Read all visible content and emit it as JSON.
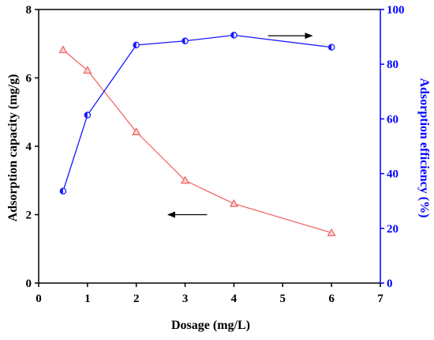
{
  "chart_data": {
    "type": "line",
    "xlabel": "Dosage (mg/L)",
    "ylabel_left": "Adsorption capacity (mg/g)",
    "ylabel_right": "Adsorption efficiency (%)",
    "xlim": [
      0,
      7
    ],
    "ylim_left": [
      0,
      8
    ],
    "ylim_right": [
      0,
      100
    ],
    "x_ticks": [
      0,
      1,
      2,
      3,
      4,
      5,
      6,
      7
    ],
    "y_left_ticks": [
      0,
      2,
      4,
      6,
      8
    ],
    "y_right_ticks": [
      0,
      20,
      40,
      60,
      80,
      100
    ],
    "grid": false,
    "series": [
      {
        "axis": "left",
        "marker": "triangle",
        "color": "#f06a6a",
        "x": [
          0.5,
          1,
          2,
          3,
          4,
          6
        ],
        "values": [
          6.82,
          6.22,
          4.42,
          3.0,
          2.32,
          1.47
        ]
      },
      {
        "axis": "right",
        "marker": "half-filled-circle",
        "color": "#1a1aff",
        "x": [
          0.5,
          1,
          2,
          3,
          4,
          6
        ],
        "values": [
          33.6,
          61.4,
          87.0,
          88.5,
          90.6,
          86.2
        ]
      }
    ],
    "annotations": [
      {
        "type": "arrow",
        "points_to": "left axis",
        "near_series": 0
      },
      {
        "type": "arrow",
        "points_to": "right axis",
        "near_series": 1
      }
    ],
    "colors": {
      "left_axis": "#000000",
      "right_axis": "#0000ff"
    }
  }
}
